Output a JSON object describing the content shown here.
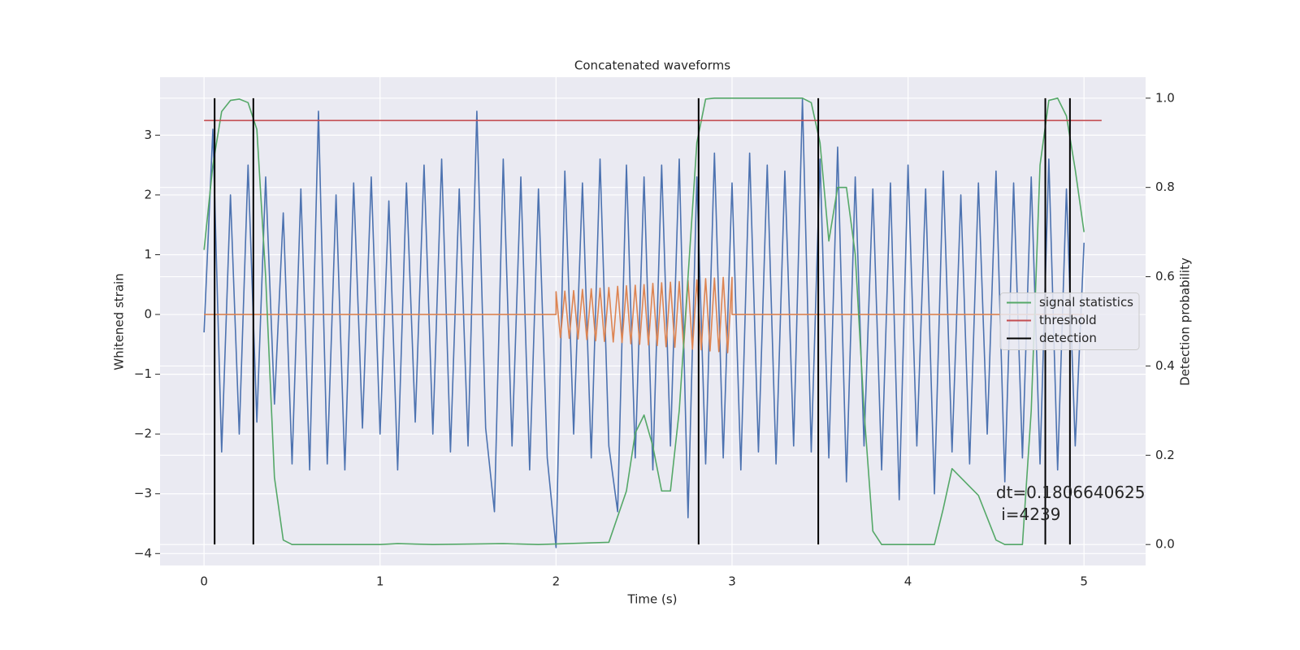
{
  "chart_data": {
    "type": "line",
    "title": "Concatenated waveforms",
    "xlabel": "Time (s)",
    "ylabel": "Whitened strain",
    "y2label": "Detection probability",
    "xlim": [
      -0.25,
      5.35
    ],
    "ylim": [
      -4.2,
      3.97
    ],
    "y2lim": [
      -0.047,
      1.047
    ],
    "xticks": [
      0,
      1,
      2,
      3,
      4,
      5
    ],
    "yticks": [
      {
        "value": -4,
        "label": "−4"
      },
      {
        "value": -3,
        "label": "−3"
      },
      {
        "value": -2,
        "label": "−2"
      },
      {
        "value": -1,
        "label": "−1"
      },
      0,
      1,
      2,
      3
    ],
    "y2ticks": [
      {
        "value": 0,
        "label": "0.0"
      },
      {
        "value": 0.2,
        "label": "0.2"
      },
      {
        "value": 0.4,
        "label": "0.4"
      },
      {
        "value": 0.6,
        "label": "0.6"
      },
      {
        "value": 0.8,
        "label": "0.8"
      },
      {
        "value": 1,
        "label": "1.0"
      }
    ],
    "grid": true,
    "legend": "center right",
    "series": [
      {
        "color": "#4c72b0",
        "x": [
          0,
          0.05,
          0.1,
          0.15,
          0.2,
          0.25,
          0.3,
          0.35,
          0.4,
          0.45,
          0.5,
          0.55,
          0.6,
          0.65,
          0.7,
          0.75,
          0.8,
          0.85,
          0.9,
          0.95,
          1,
          1.05,
          1.1,
          1.15,
          1.2,
          1.25,
          1.3,
          1.35,
          1.4,
          1.45,
          1.5,
          1.55,
          1.6,
          1.65,
          1.7,
          1.75,
          1.8,
          1.85,
          1.9,
          1.95,
          2,
          2.05,
          2.1,
          2.15,
          2.2,
          2.25,
          2.3,
          2.35,
          2.4,
          2.45,
          2.5,
          2.55,
          2.6,
          2.65,
          2.7,
          2.75,
          2.8,
          2.85,
          2.9,
          2.95,
          3,
          3.05,
          3.1,
          3.15,
          3.2,
          3.25,
          3.3,
          3.35,
          3.4,
          3.45,
          3.5,
          3.55,
          3.6,
          3.65,
          3.7,
          3.75,
          3.8,
          3.85,
          3.9,
          3.95,
          4,
          4.05,
          4.1,
          4.15,
          4.2,
          4.25,
          4.3,
          4.35,
          4.4,
          4.45,
          4.5,
          4.55,
          4.6,
          4.65,
          4.7,
          4.75,
          4.8,
          4.85,
          4.9,
          4.95,
          5
        ],
        "values": [
          -0.3,
          3.1,
          -2.3,
          2.0,
          -2.0,
          2.5,
          -1.8,
          2.3,
          -1.5,
          1.7,
          -2.5,
          2.1,
          -2.6,
          3.4,
          -2.5,
          2.0,
          -2.6,
          2.2,
          -1.9,
          2.3,
          -2.0,
          1.9,
          -2.6,
          2.2,
          -1.8,
          2.5,
          -2.0,
          2.6,
          -2.3,
          2.1,
          -2.2,
          3.4,
          -1.9,
          -3.3,
          2.6,
          -2.2,
          2.3,
          -2.6,
          2.1,
          -2.4,
          -3.9,
          2.4,
          -2.0,
          2.2,
          -2.4,
          2.6,
          -2.2,
          -3.3,
          2.5,
          -2.4,
          2.3,
          -2.6,
          2.5,
          -2.2,
          2.6,
          -3.4,
          2.3,
          -2.5,
          2.7,
          -2.4,
          2.2,
          -2.6,
          2.7,
          -2.3,
          2.5,
          -2.5,
          2.4,
          -2.2,
          3.6,
          -2.3,
          2.6,
          -2.4,
          2.8,
          -2.8,
          2.3,
          -2.2,
          2.1,
          -2.6,
          2.2,
          -3.1,
          2.5,
          -2.2,
          2.1,
          -3.0,
          2.4,
          -2.3,
          2.0,
          -2.5,
          2.2,
          -2.0,
          2.4,
          -2.8,
          2.2,
          -2.4,
          2.3,
          -2.5,
          2.6,
          -2.6,
          2.1,
          -2.2,
          1.2
        ]
      },
      {
        "color": "#dd8452",
        "x": [
          0,
          2,
          2,
          2.025,
          2.05,
          2.075,
          2.1,
          2.125,
          2.15,
          2.175,
          2.2,
          2.225,
          2.25,
          2.275,
          2.3,
          2.325,
          2.35,
          2.375,
          2.4,
          2.425,
          2.45,
          2.475,
          2.5,
          2.525,
          2.55,
          2.575,
          2.6,
          2.625,
          2.65,
          2.675,
          2.7,
          2.725,
          2.75,
          2.775,
          2.8,
          2.825,
          2.85,
          2.875,
          2.9,
          2.925,
          2.95,
          2.975,
          3,
          3,
          5
        ],
        "values": [
          0,
          0,
          0.38,
          -0.39,
          0.39,
          -0.4,
          0.4,
          -0.41,
          0.42,
          -0.42,
          0.43,
          -0.44,
          0.44,
          -0.45,
          0.45,
          -0.46,
          0.47,
          -0.47,
          0.48,
          -0.49,
          0.49,
          -0.5,
          0.5,
          -0.51,
          0.52,
          -0.52,
          0.53,
          -0.54,
          0.54,
          -0.55,
          0.55,
          -0.56,
          0.57,
          -0.58,
          0.58,
          -0.59,
          0.6,
          -0.61,
          0.61,
          -0.62,
          0.62,
          -0.64,
          0.62,
          0,
          0
        ]
      },
      {
        "name": "signal statistics",
        "color": "#55a868",
        "axis": "y2",
        "x": [
          0,
          0.05,
          0.1,
          0.15,
          0.2,
          0.25,
          0.3,
          0.35,
          0.4,
          0.45,
          0.5,
          1.0,
          1.1,
          1.3,
          1.7,
          1.9,
          2.3,
          2.4,
          2.45,
          2.5,
          2.55,
          2.6,
          2.65,
          2.7,
          2.75,
          2.8,
          2.85,
          2.9,
          3.4,
          3.45,
          3.5,
          3.55,
          3.6,
          3.65,
          3.7,
          3.75,
          3.8,
          3.85,
          4.15,
          4.2,
          4.25,
          4.3,
          4.35,
          4.4,
          4.45,
          4.5,
          4.55,
          4.65,
          4.7,
          4.75,
          4.8,
          4.85,
          4.9,
          4.95,
          5.0
        ],
        "values": [
          0.66,
          0.85,
          0.97,
          0.995,
          0.998,
          0.99,
          0.93,
          0.6,
          0.15,
          0.01,
          0,
          0,
          0.002,
          0,
          0.002,
          0,
          0.005,
          0.12,
          0.25,
          0.29,
          0.22,
          0.12,
          0.12,
          0.3,
          0.6,
          0.9,
          0.998,
          1.0,
          1.0,
          0.99,
          0.9,
          0.68,
          0.8,
          0.8,
          0.65,
          0.3,
          0.03,
          0,
          0,
          0.08,
          0.17,
          0.15,
          0.13,
          0.11,
          0.06,
          0.01,
          0,
          0,
          0.3,
          0.85,
          0.995,
          1.0,
          0.96,
          0.84,
          0.7
        ]
      },
      {
        "name": "threshold",
        "color": "#c44e52",
        "axis": "y2",
        "x": [
          0,
          5.1
        ],
        "values": [
          0.95,
          0.95
        ]
      },
      {
        "name": "detection",
        "color": "#000000",
        "axis": "y2",
        "type": "vlines",
        "x": [
          0.06,
          0.28,
          2.81,
          3.49,
          4.78,
          4.92
        ],
        "ymin": 0,
        "ymax": 1.0
      }
    ],
    "annotations": [
      {
        "lines": [
          "dt=0.1806640625",
          " i=4239"
        ],
        "x": 4.5,
        "y": -3.0
      }
    ]
  }
}
